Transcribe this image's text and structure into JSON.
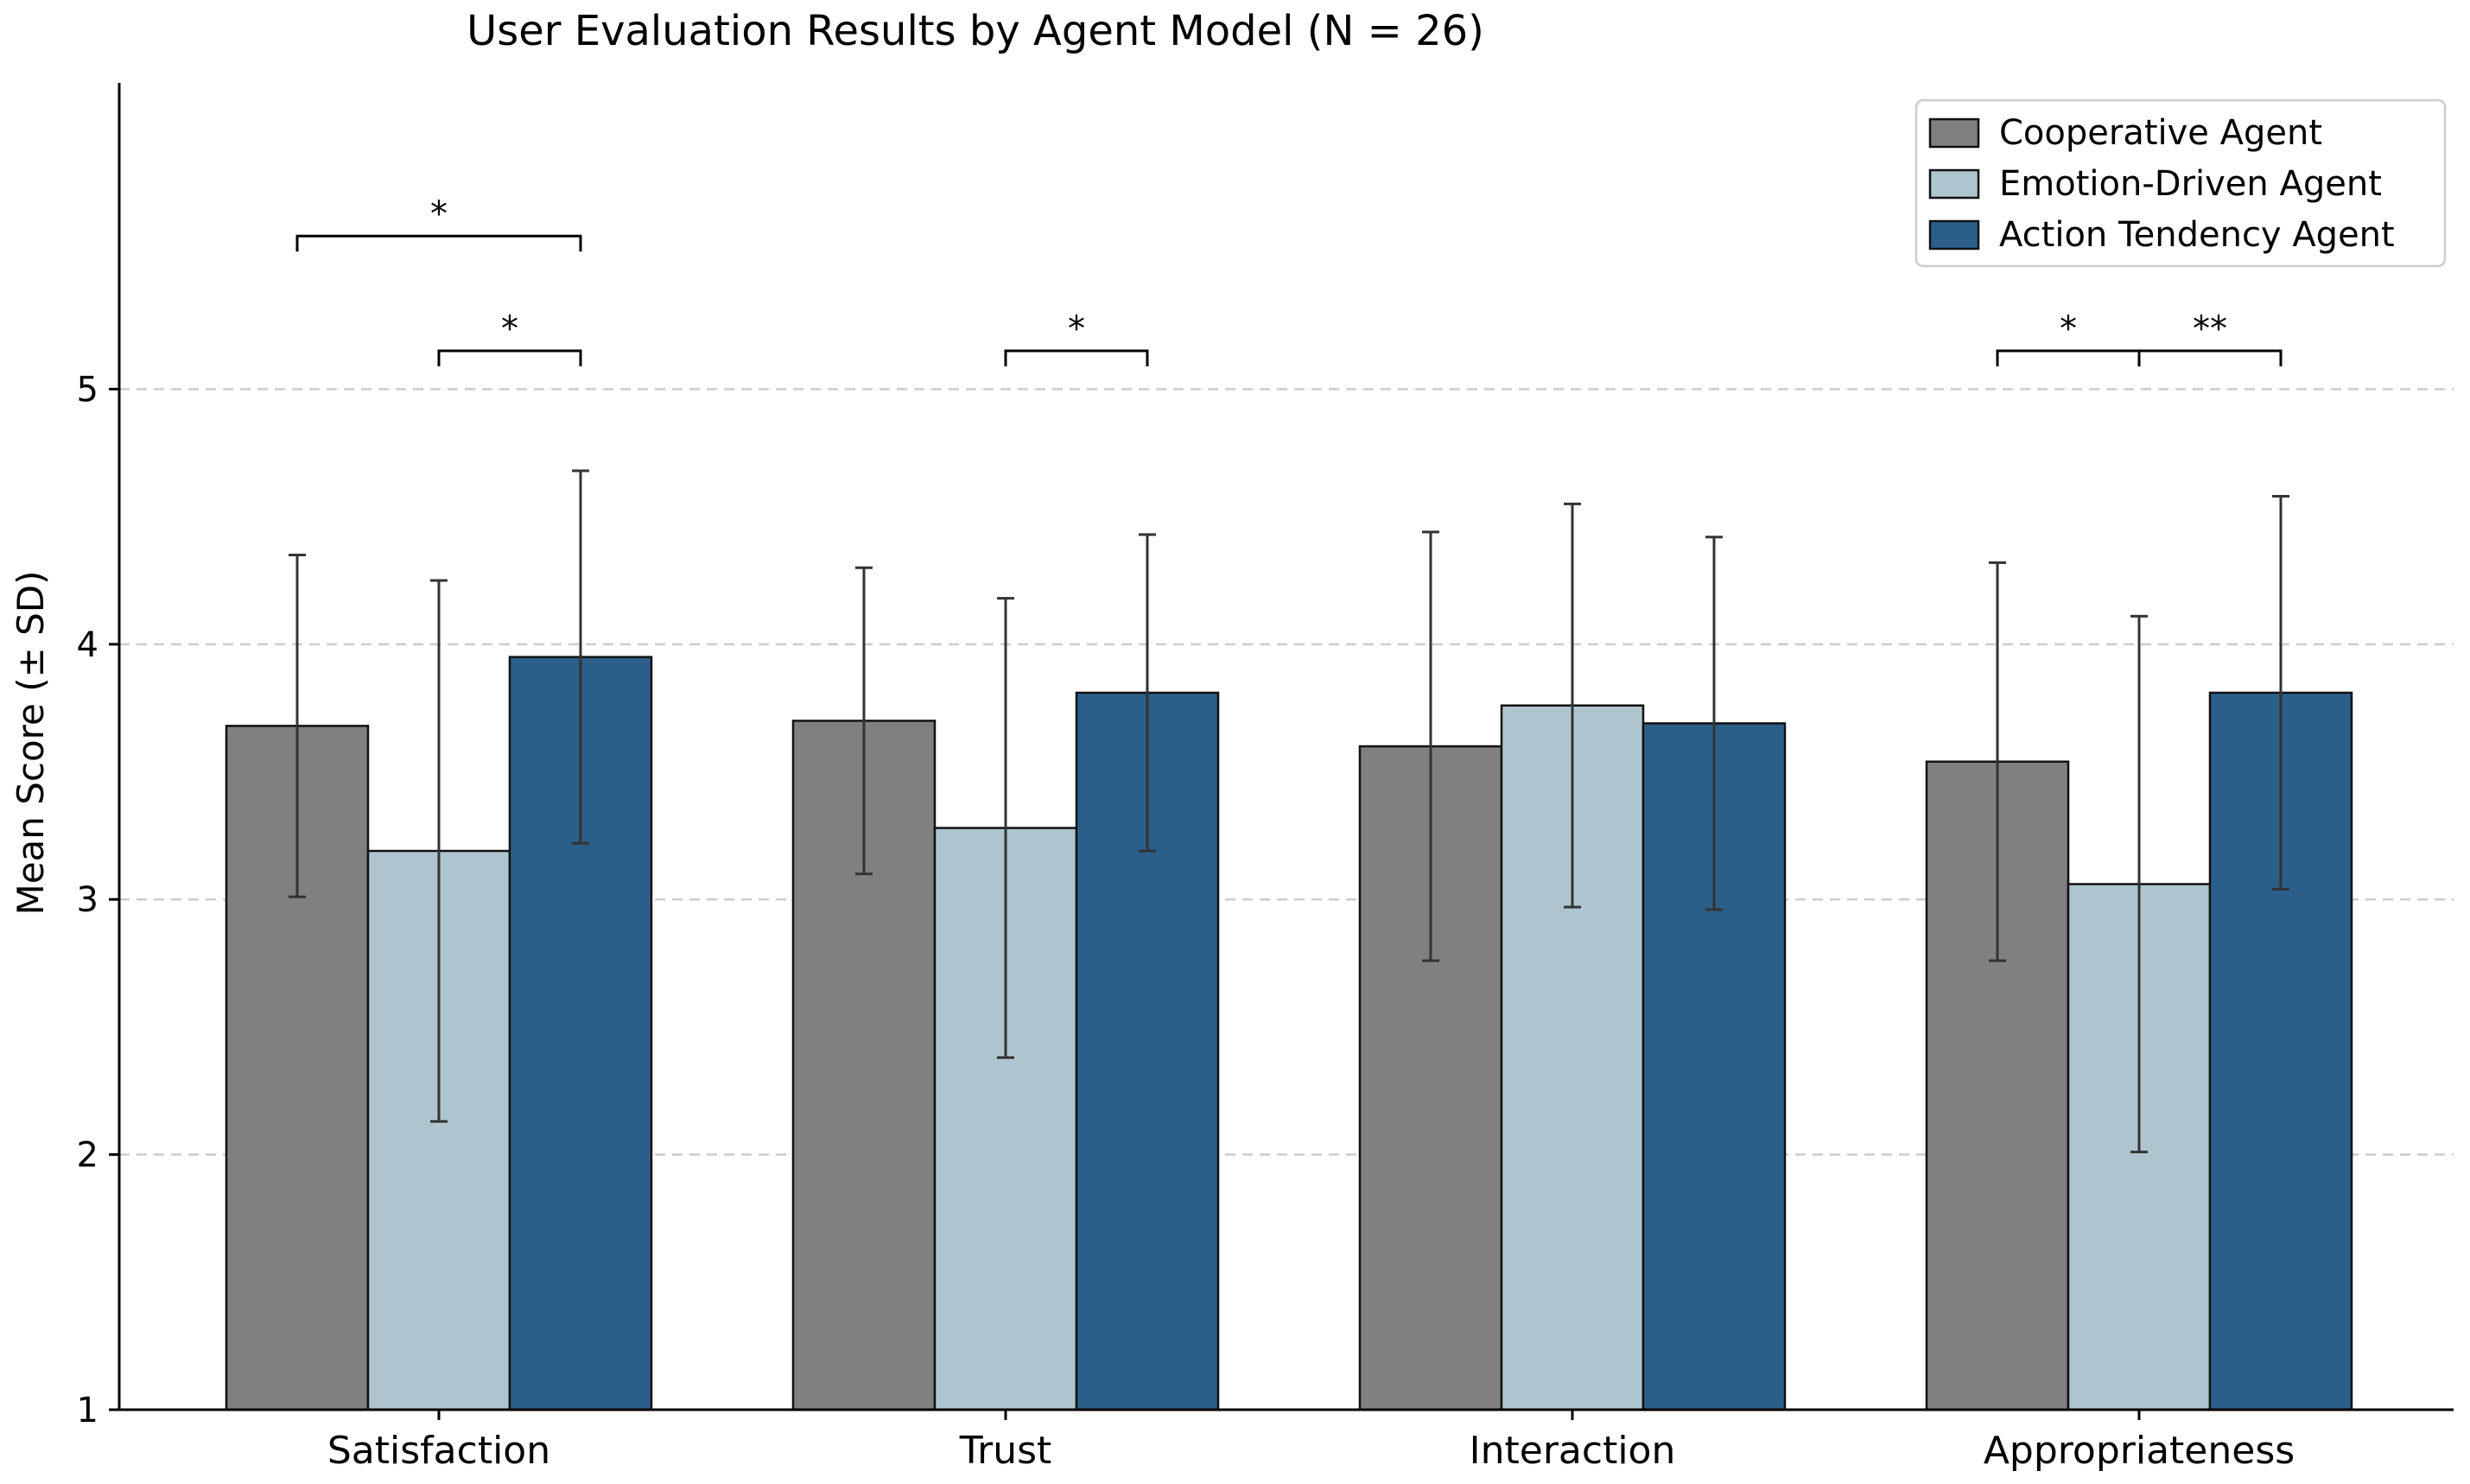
{
  "chart_data": {
    "type": "bar",
    "title": "User Evaluation Results by Agent Model (N = 26)",
    "xlabel": "",
    "ylabel": "Mean Score (± SD)",
    "ylim": [
      1,
      6.2
    ],
    "yticks": [
      1,
      2,
      3,
      4,
      5
    ],
    "grid": "horizontal dashed",
    "legend_position": "top-right",
    "categories": [
      "Satisfaction",
      "Trust",
      "Interaction",
      "Appropriateness"
    ],
    "series": [
      {
        "name": "Cooperative Agent",
        "color": "#808080",
        "values": [
          3.68,
          3.7,
          3.6,
          3.54
        ],
        "sd": [
          0.67,
          0.6,
          0.84,
          0.78
        ]
      },
      {
        "name": "Emotion-Driven Agent",
        "color": "#aec5cf",
        "values": [
          3.19,
          3.28,
          3.76,
          3.06
        ],
        "sd": [
          1.06,
          0.9,
          0.79,
          1.05
        ]
      },
      {
        "name": "Action Tendency Agent",
        "color": "#2b5f8a",
        "values": [
          3.95,
          3.81,
          3.69,
          3.81
        ],
        "sd": [
          0.73,
          0.62,
          0.73,
          0.77
        ]
      }
    ],
    "significance": [
      {
        "category": 0,
        "from": 0,
        "to": 2,
        "label": "*",
        "level": 5.6
      },
      {
        "category": 0,
        "from": 1,
        "to": 2,
        "label": "*",
        "level": 5.15
      },
      {
        "category": 1,
        "from": 1,
        "to": 2,
        "label": "*",
        "level": 5.15
      },
      {
        "category": 3,
        "from": 0,
        "to": 1,
        "label": "*",
        "level": 5.15
      },
      {
        "category": 3,
        "from": 1,
        "to": 2,
        "label": "**",
        "level": 5.15
      }
    ]
  }
}
